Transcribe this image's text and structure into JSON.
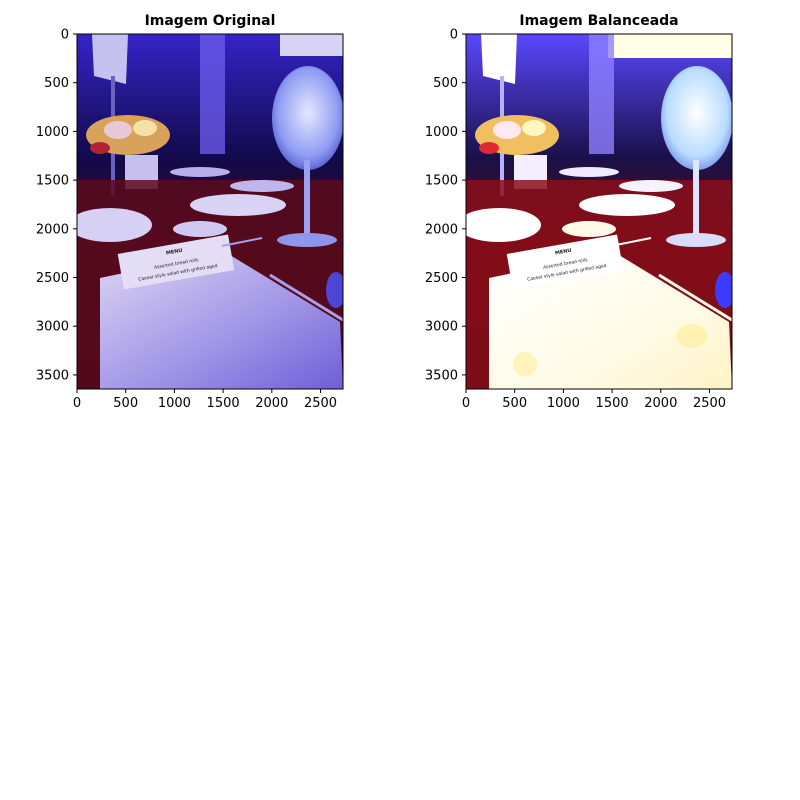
{
  "panels": [
    {
      "title": "Imagem Original",
      "x_ticks": [
        "0",
        "500",
        "1000",
        "1500",
        "2000",
        "2500"
      ],
      "y_ticks": [
        "0",
        "500",
        "1000",
        "1500",
        "2000",
        "2500",
        "3000",
        "3500"
      ],
      "image_colors": {
        "light": "#c9c4f1",
        "mid": "#4a37d6",
        "shadow": "#130a55",
        "cloth": "#7a0d12"
      }
    },
    {
      "title": "Imagem Balanceada",
      "x_ticks": [
        "0",
        "500",
        "1000",
        "1500",
        "2000",
        "2500"
      ],
      "y_ticks": [
        "0",
        "500",
        "1000",
        "1500",
        "2000",
        "2500",
        "3000",
        "3500"
      ],
      "image_colors": {
        "light": "#fffbe6",
        "mid": "#7f6aff",
        "shadow": "#1c1250",
        "cloth": "#b11b1a"
      }
    }
  ],
  "menu_card": {
    "heading": "MENU",
    "line1": "Assorted bread rolls",
    "line2": "Caesar style salad with grilled aged"
  }
}
